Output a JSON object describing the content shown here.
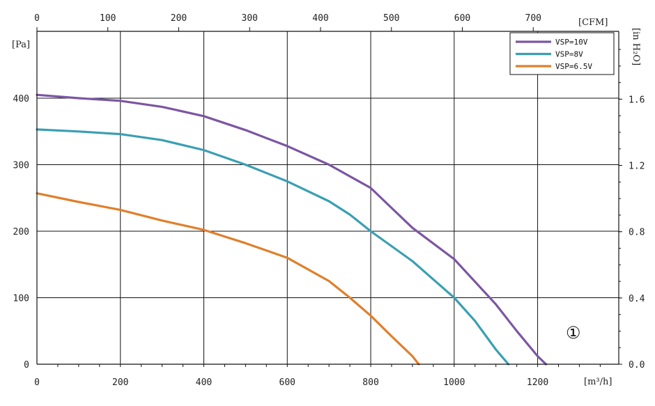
{
  "chart_data": {
    "type": "line",
    "xlabel": "[m³/h]",
    "ylabel": "[Pa]",
    "x2label": "[CFM]",
    "y2label": "[in H₂O]",
    "xlim": [
      0,
      1300
    ],
    "ylim": [
      0,
      500
    ],
    "x_ticks": [
      "0",
      "200",
      "400",
      "600",
      "800",
      "1000",
      "1200"
    ],
    "y_ticks": [
      "0",
      "100",
      "200",
      "300",
      "400"
    ],
    "x2_ticks": [
      "0",
      "100",
      "200",
      "300",
      "400",
      "500",
      "600",
      "700"
    ],
    "y2_ticks": [
      "0.0",
      "0.4",
      "0.8",
      "1.2",
      "1.6"
    ],
    "grid": true,
    "legend_position": "top-right",
    "annotation": "①",
    "series": [
      {
        "name": "VSP=10V",
        "color": "#7b56a3",
        "points": [
          [
            0,
            405
          ],
          [
            100,
            400
          ],
          [
            200,
            396
          ],
          [
            300,
            387
          ],
          [
            400,
            373
          ],
          [
            500,
            352
          ],
          [
            600,
            328
          ],
          [
            700,
            300
          ],
          [
            800,
            265
          ],
          [
            850,
            235
          ],
          [
            900,
            205
          ],
          [
            1000,
            158
          ],
          [
            1100,
            90
          ],
          [
            1150,
            50
          ],
          [
            1200,
            12
          ],
          [
            1220,
            0
          ]
        ]
      },
      {
        "name": "VSP=8V",
        "color": "#3a9fb3",
        "points": [
          [
            0,
            353
          ],
          [
            100,
            350
          ],
          [
            200,
            346
          ],
          [
            300,
            337
          ],
          [
            400,
            322
          ],
          [
            500,
            300
          ],
          [
            600,
            275
          ],
          [
            700,
            245
          ],
          [
            750,
            225
          ],
          [
            800,
            200
          ],
          [
            900,
            155
          ],
          [
            1000,
            100
          ],
          [
            1050,
            65
          ],
          [
            1100,
            22
          ],
          [
            1130,
            0
          ]
        ]
      },
      {
        "name": "VSP=6.5V",
        "color": "#e07f2b",
        "points": [
          [
            0,
            257
          ],
          [
            100,
            244
          ],
          [
            200,
            232
          ],
          [
            300,
            216
          ],
          [
            400,
            202
          ],
          [
            500,
            182
          ],
          [
            600,
            160
          ],
          [
            700,
            125
          ],
          [
            750,
            100
          ],
          [
            800,
            73
          ],
          [
            850,
            42
          ],
          [
            900,
            12
          ],
          [
            915,
            0
          ]
        ]
      }
    ]
  }
}
